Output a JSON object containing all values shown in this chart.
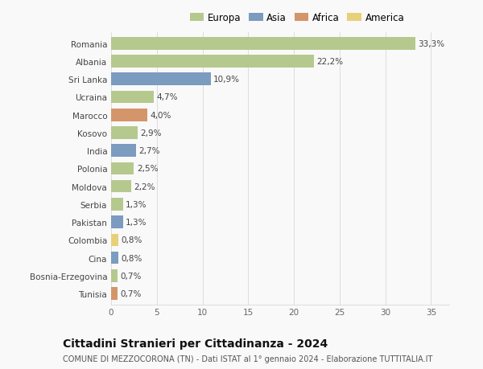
{
  "countries": [
    "Romania",
    "Albania",
    "Sri Lanka",
    "Ucraina",
    "Marocco",
    "Kosovo",
    "India",
    "Polonia",
    "Moldova",
    "Serbia",
    "Pakistan",
    "Colombia",
    "Cina",
    "Bosnia-Erzegovina",
    "Tunisia"
  ],
  "values": [
    33.3,
    22.2,
    10.9,
    4.7,
    4.0,
    2.9,
    2.7,
    2.5,
    2.2,
    1.3,
    1.3,
    0.8,
    0.8,
    0.7,
    0.7
  ],
  "labels": [
    "33,3%",
    "22,2%",
    "10,9%",
    "4,7%",
    "4,0%",
    "2,9%",
    "2,7%",
    "2,5%",
    "2,2%",
    "1,3%",
    "1,3%",
    "0,8%",
    "0,8%",
    "0,7%",
    "0,7%"
  ],
  "continents": [
    "Europa",
    "Europa",
    "Asia",
    "Europa",
    "Africa",
    "Europa",
    "Asia",
    "Europa",
    "Europa",
    "Europa",
    "Asia",
    "America",
    "Asia",
    "Europa",
    "Africa"
  ],
  "colors": {
    "Europa": "#b5c98e",
    "Asia": "#7b9bbf",
    "Africa": "#d4956a",
    "America": "#e8d07a"
  },
  "legend_order": [
    "Europa",
    "Asia",
    "Africa",
    "America"
  ],
  "xlim": [
    0,
    37
  ],
  "xticks": [
    0,
    5,
    10,
    15,
    20,
    25,
    30,
    35
  ],
  "title": "Cittadini Stranieri per Cittadinanza - 2024",
  "subtitle": "COMUNE DI MEZZOCORONA (TN) - Dati ISTAT al 1° gennaio 2024 - Elaborazione TUTTITALIA.IT",
  "bg_color": "#f9f9f9",
  "grid_color": "#dddddd",
  "bar_height": 0.7,
  "label_fontsize": 7.5,
  "title_fontsize": 10,
  "subtitle_fontsize": 7,
  "ytick_fontsize": 7.5,
  "xtick_fontsize": 7.5,
  "legend_fontsize": 8.5
}
